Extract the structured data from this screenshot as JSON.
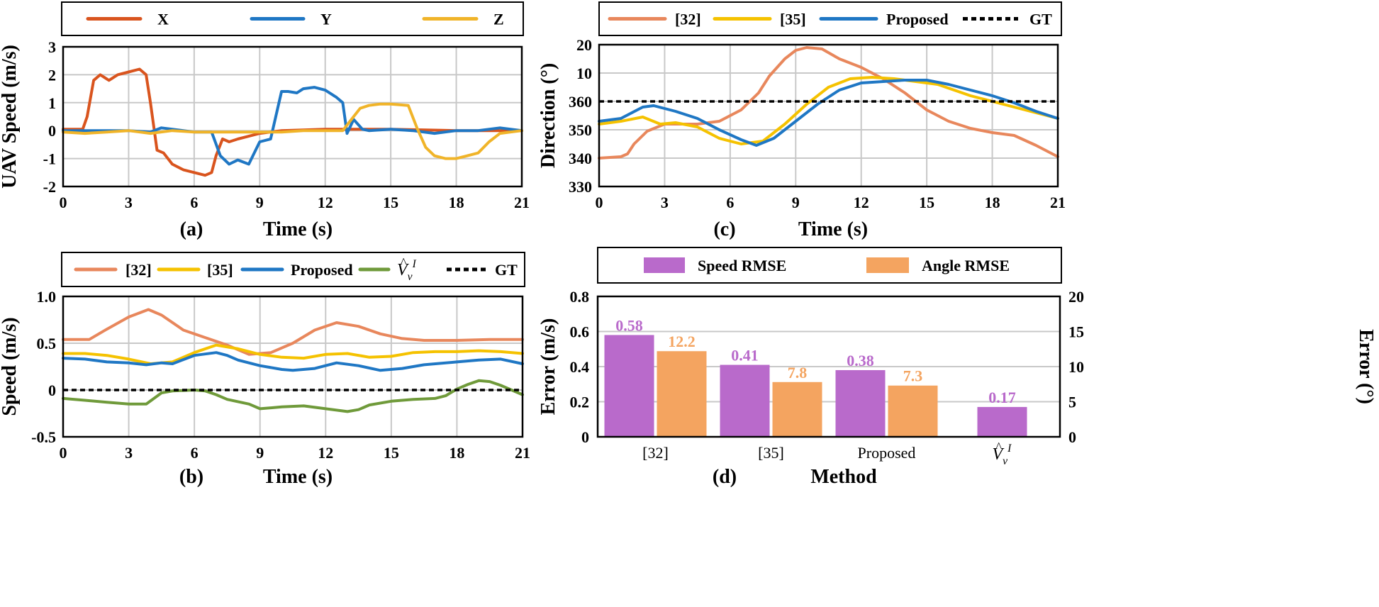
{
  "colors": {
    "x_axis": "#d9541e",
    "y_axis": "#1f77c4",
    "z_axis": "#f0b429",
    "ref32": "#e8875c",
    "ref35": "#f5c200",
    "proposed": "#1f77c4",
    "vhat": "#6f9a3a",
    "gt": "#000000",
    "speed_rmse": "#b96acb",
    "angle_rmse": "#f4a460"
  },
  "chart_data": [
    {
      "id": "a",
      "type": "line",
      "panel_label": "(a)",
      "xlabel": "Time (s)",
      "ylabel": "UAV Speed (m/s)",
      "xlim": [
        0,
        21
      ],
      "ylim": [
        -2,
        3
      ],
      "xticks": [
        "0",
        "3",
        "6",
        "9",
        "12",
        "15",
        "18",
        "21"
      ],
      "yticks": [
        "-2",
        "-1",
        "0",
        "1",
        "2",
        "3"
      ],
      "legend": [
        "X",
        "Y",
        "Z"
      ],
      "series": [
        {
          "name": "X",
          "color_key": "x_axis",
          "x": [
            0,
            0.9,
            1.1,
            1.4,
            1.7,
            2.1,
            2.5,
            3.0,
            3.5,
            3.8,
            4.0,
            4.3,
            4.6,
            5.0,
            5.5,
            6.0,
            6.5,
            6.8,
            7.0,
            7.3,
            7.6,
            8.0,
            8.5,
            9.0,
            10,
            12,
            15,
            18,
            21
          ],
          "y": [
            0.05,
            0.05,
            0.5,
            1.8,
            2.0,
            1.8,
            2.0,
            2.1,
            2.2,
            2.0,
            1.0,
            -0.7,
            -0.8,
            -1.2,
            -1.4,
            -1.5,
            -1.6,
            -1.5,
            -0.9,
            -0.3,
            -0.4,
            -0.3,
            -0.2,
            -0.1,
            0,
            0.05,
            0.05,
            0,
            0
          ]
        },
        {
          "name": "Y",
          "color_key": "y_axis",
          "x": [
            0,
            1,
            2,
            3,
            4,
            4.5,
            5,
            6,
            6.8,
            7.2,
            7.6,
            8.0,
            8.5,
            9.0,
            9.5,
            10.0,
            10.3,
            10.7,
            11.0,
            11.5,
            12.0,
            12.5,
            12.8,
            13.0,
            13.3,
            13.7,
            14.0,
            15,
            16,
            17,
            18,
            19,
            20,
            21
          ],
          "y": [
            0,
            0,
            0,
            0,
            -0.05,
            0.1,
            0.05,
            -0.05,
            -0.05,
            -0.9,
            -1.2,
            -1.05,
            -1.2,
            -0.4,
            -0.3,
            1.4,
            1.4,
            1.35,
            1.5,
            1.55,
            1.45,
            1.2,
            1.0,
            -0.1,
            0.4,
            0.05,
            0,
            0.05,
            0,
            -0.1,
            0,
            0,
            0.1,
            0
          ]
        },
        {
          "name": "Z",
          "color_key": "z_axis",
          "x": [
            0,
            1,
            2,
            3,
            4,
            5,
            6,
            7,
            8,
            9,
            10,
            11,
            12,
            12.8,
            13.2,
            13.6,
            14.0,
            14.5,
            15.0,
            15.8,
            16.2,
            16.6,
            17.0,
            17.5,
            18.0,
            18.5,
            19.0,
            19.5,
            20,
            21
          ],
          "y": [
            -0.05,
            -0.1,
            -0.05,
            0,
            -0.1,
            0,
            -0.05,
            -0.05,
            -0.05,
            -0.05,
            -0.05,
            0,
            0,
            0,
            0.4,
            0.8,
            0.9,
            0.95,
            0.95,
            0.9,
            0.1,
            -0.6,
            -0.9,
            -1.0,
            -1.0,
            -0.9,
            -0.8,
            -0.4,
            -0.1,
            0
          ]
        }
      ]
    },
    {
      "id": "b",
      "type": "line",
      "panel_label": "(b)",
      "xlabel": "Time (s)",
      "ylabel": "Speed (m/s)",
      "xlim": [
        0,
        21
      ],
      "ylim": [
        -0.5,
        1.0
      ],
      "xticks": [
        "0",
        "3",
        "6",
        "9",
        "12",
        "15",
        "18",
        "21"
      ],
      "yticks": [
        "-0.5",
        "0",
        "0.5",
        "1.0"
      ],
      "ytick_values": [
        -0.5,
        0,
        0.5,
        1.0
      ],
      "legend": [
        "[32]",
        "[35]",
        "Proposed",
        "V_hat",
        "GT"
      ],
      "series": [
        {
          "name": "[32]",
          "color_key": "ref32",
          "x": [
            0,
            1.2,
            2,
            3,
            3.9,
            4.5,
            5.5,
            6.5,
            7.5,
            8.5,
            9.5,
            10.5,
            11.5,
            12.5,
            13.5,
            14.5,
            15.5,
            16.5,
            18,
            19.5,
            21
          ],
          "y": [
            0.54,
            0.54,
            0.65,
            0.78,
            0.86,
            0.8,
            0.64,
            0.56,
            0.48,
            0.38,
            0.4,
            0.5,
            0.64,
            0.72,
            0.68,
            0.6,
            0.55,
            0.53,
            0.53,
            0.54,
            0.54
          ]
        },
        {
          "name": "[35]",
          "color_key": "ref35",
          "x": [
            0,
            1,
            2,
            3,
            4,
            5,
            6,
            7,
            8,
            9,
            10,
            11,
            12,
            13,
            14,
            15,
            16,
            17,
            18,
            19,
            20,
            21
          ],
          "y": [
            0.39,
            0.39,
            0.37,
            0.33,
            0.28,
            0.3,
            0.4,
            0.48,
            0.44,
            0.38,
            0.35,
            0.34,
            0.38,
            0.39,
            0.35,
            0.36,
            0.4,
            0.41,
            0.41,
            0.42,
            0.41,
            0.39
          ]
        },
        {
          "name": "Proposed",
          "color_key": "proposed",
          "x": [
            0,
            1,
            2,
            3,
            3.8,
            4.5,
            5,
            6,
            7,
            7.5,
            8,
            9,
            10,
            10.5,
            11.5,
            12.5,
            13.5,
            14.5,
            15.5,
            16.5,
            18,
            19,
            20,
            21
          ],
          "y": [
            0.34,
            0.33,
            0.3,
            0.29,
            0.27,
            0.29,
            0.28,
            0.37,
            0.4,
            0.37,
            0.32,
            0.26,
            0.22,
            0.21,
            0.23,
            0.29,
            0.26,
            0.21,
            0.23,
            0.27,
            0.3,
            0.32,
            0.33,
            0.28
          ]
        },
        {
          "name": "V_hat",
          "color_key": "vhat",
          "x": [
            0,
            1,
            2,
            3,
            3.8,
            4.5,
            5,
            6,
            6.5,
            7,
            7.5,
            8.5,
            9,
            10,
            11,
            12,
            13,
            13.5,
            14,
            15,
            16,
            17,
            17.5,
            18,
            18.5,
            19,
            19.5,
            20,
            21
          ],
          "y": [
            -0.09,
            -0.11,
            -0.13,
            -0.15,
            -0.15,
            -0.03,
            -0.01,
            0,
            -0.01,
            -0.05,
            -0.1,
            -0.15,
            -0.2,
            -0.18,
            -0.17,
            -0.2,
            -0.23,
            -0.21,
            -0.16,
            -0.12,
            -0.1,
            -0.09,
            -0.06,
            0.01,
            0.06,
            0.1,
            0.09,
            0.05,
            -0.05
          ]
        },
        {
          "name": "GT",
          "color_key": "gt",
          "dashed": true,
          "x": [
            0,
            21
          ],
          "y": [
            0,
            0
          ]
        }
      ]
    },
    {
      "id": "c",
      "type": "line",
      "panel_label": "(c)",
      "xlabel": "Time (s)",
      "ylabel": "Direction (°)",
      "xlim": [
        0,
        21
      ],
      "ylim": [
        -30,
        20
      ],
      "xticks": [
        "0",
        "3",
        "6",
        "9",
        "12",
        "15",
        "18",
        "21"
      ],
      "yticks": [
        "330",
        "340",
        "350",
        "360",
        "10",
        "20"
      ],
      "ytick_values": [
        -30,
        -20,
        -10,
        0,
        10,
        20
      ],
      "legend": [
        "[32]",
        "[35]",
        "Proposed",
        "GT"
      ],
      "series": [
        {
          "name": "[32]",
          "color_key": "ref32",
          "x": [
            0,
            1,
            1.3,
            1.6,
            2.2,
            3,
            3.5,
            4.5,
            5.5,
            6.5,
            7.3,
            7.8,
            8.5,
            9.0,
            9.5,
            10.2,
            11,
            12,
            13,
            14,
            15,
            16,
            17,
            18,
            19,
            20,
            21
          ],
          "y": [
            -20,
            -19.5,
            -18.5,
            -15,
            -10.5,
            -8,
            -8,
            -8,
            -7,
            -3,
            3,
            9,
            15,
            18,
            19,
            18.5,
            15,
            12,
            8,
            3,
            -3,
            -7,
            -9.5,
            -11,
            -12,
            -15.5,
            -19.5
          ]
        },
        {
          "name": "[35]",
          "color_key": "ref35",
          "x": [
            0,
            1,
            2,
            2.8,
            3.5,
            4.5,
            5.5,
            6.5,
            7.5,
            8.5,
            9.5,
            10.5,
            11.5,
            12.5,
            13.5,
            14.5,
            15.5,
            17,
            18.5,
            20,
            21
          ],
          "y": [
            -8,
            -7,
            -5.5,
            -8,
            -7.5,
            -9,
            -13,
            -15,
            -14,
            -8,
            -1,
            5,
            8,
            8.5,
            8,
            7,
            6,
            2,
            -1,
            -4,
            -6
          ]
        },
        {
          "name": "Proposed",
          "color_key": "proposed",
          "x": [
            0,
            1,
            2,
            2.5,
            3.5,
            4.5,
            5.5,
            6.5,
            7.2,
            8,
            9,
            10,
            11,
            12,
            13,
            14,
            15,
            16,
            17,
            18,
            19,
            20,
            21
          ],
          "y": [
            -7,
            -6,
            -2,
            -1.5,
            -3.5,
            -6,
            -10,
            -13.5,
            -15.5,
            -13,
            -7,
            -1,
            4,
            6.5,
            7,
            7.5,
            7.5,
            6,
            4,
            2,
            -0.5,
            -3.5,
            -6
          ]
        },
        {
          "name": "GT",
          "color_key": "gt",
          "dashed": true,
          "x": [
            0,
            21
          ],
          "y": [
            0,
            0
          ]
        }
      ]
    },
    {
      "id": "d",
      "type": "bar",
      "panel_label": "(d)",
      "xlabel": "Method",
      "ylabel": "Error (m/s)",
      "ylabel_right": "Error (°)",
      "categories": [
        "[32]",
        "[35]",
        "Proposed",
        "V_hat"
      ],
      "ylim": [
        0,
        0.8
      ],
      "ylim_right": [
        0,
        20
      ],
      "yticks": [
        "0",
        "0.2",
        "0.4",
        "0.6",
        "0.8"
      ],
      "yticks_right": [
        "0",
        "5",
        "10",
        "15",
        "20"
      ],
      "legend": [
        "Speed RMSE",
        "Angle RMSE"
      ],
      "series": [
        {
          "name": "Speed RMSE",
          "color_key": "speed_rmse",
          "axis": "left",
          "values": [
            0.58,
            0.41,
            0.38,
            0.17
          ],
          "labels": [
            "0.58",
            "0.41",
            "0.38",
            "0.17"
          ]
        },
        {
          "name": "Angle RMSE",
          "color_key": "angle_rmse",
          "axis": "right",
          "values": [
            12.2,
            7.8,
            7.3,
            null
          ],
          "labels": [
            "12.2",
            "7.8",
            "7.3",
            ""
          ]
        }
      ]
    }
  ]
}
